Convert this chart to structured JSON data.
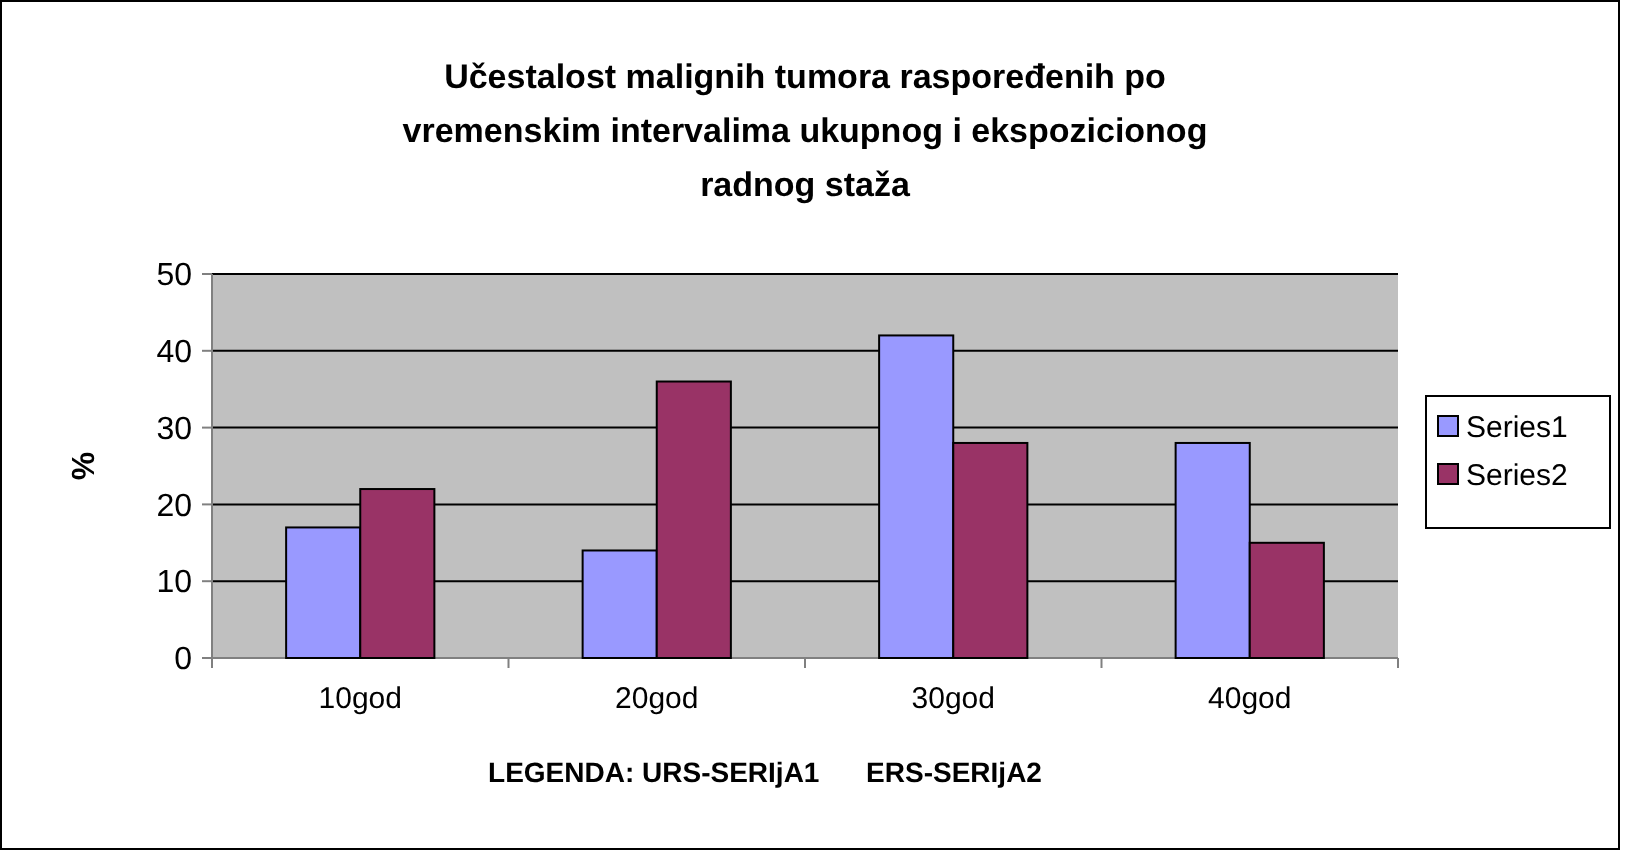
{
  "chart_data": {
    "type": "bar",
    "title": "Učestalost malignih tumora raspoređenih po vremenskim intervalima ukupnog i ekspozicionog radnog staža",
    "xlabel": "LEGENDA: URS-SERIjA1      ERS-SERIjA2",
    "ylabel": "%",
    "categories": [
      "10god",
      "20god",
      "30god",
      "40god"
    ],
    "series": [
      {
        "name": "Series1",
        "color": "#9999ff",
        "values": [
          17,
          14,
          42,
          28
        ]
      },
      {
        "name": "Series2",
        "color": "#993366",
        "values": [
          22,
          36,
          28,
          15
        ]
      }
    ],
    "ylim": [
      0,
      50
    ],
    "yticks": [
      0,
      10,
      20,
      30,
      40,
      50
    ],
    "grid": "y",
    "legend": "right"
  }
}
